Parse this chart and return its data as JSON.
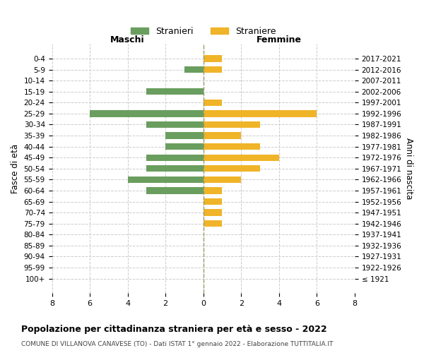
{
  "age_groups": [
    "100+",
    "95-99",
    "90-94",
    "85-89",
    "80-84",
    "75-79",
    "70-74",
    "65-69",
    "60-64",
    "55-59",
    "50-54",
    "45-49",
    "40-44",
    "35-39",
    "30-34",
    "25-29",
    "20-24",
    "15-19",
    "10-14",
    "5-9",
    "0-4"
  ],
  "birth_years": [
    "≤ 1921",
    "1922-1926",
    "1927-1931",
    "1932-1936",
    "1937-1941",
    "1942-1946",
    "1947-1951",
    "1952-1956",
    "1957-1961",
    "1962-1966",
    "1967-1971",
    "1972-1976",
    "1977-1981",
    "1982-1986",
    "1987-1991",
    "1992-1996",
    "1997-2001",
    "2002-2006",
    "2007-2011",
    "2012-2016",
    "2017-2021"
  ],
  "maschi": [
    0,
    0,
    0,
    0,
    0,
    0,
    0,
    0,
    3,
    4,
    3,
    3,
    2,
    2,
    3,
    6,
    0,
    3,
    0,
    1,
    0
  ],
  "femmine": [
    0,
    0,
    0,
    0,
    0,
    1,
    1,
    1,
    1,
    2,
    3,
    4,
    3,
    2,
    3,
    6,
    1,
    0,
    0,
    1,
    1
  ],
  "maschi_color": "#6a9e5e",
  "femmine_color": "#f0b429",
  "background_color": "#ffffff",
  "grid_color": "#cccccc",
  "title": "Popolazione per cittadinanza straniera per età e sesso - 2022",
  "subtitle": "COMUNE DI VILLANOVA CANAVESE (TO) - Dati ISTAT 1° gennaio 2022 - Elaborazione TUTTITALIA.IT",
  "xlabel_left": "Maschi",
  "xlabel_right": "Femmine",
  "ylabel_left": "Fasce di età",
  "ylabel_right": "Anni di nascita",
  "legend_maschi": "Stranieri",
  "legend_femmine": "Straniere",
  "xlim": 8
}
